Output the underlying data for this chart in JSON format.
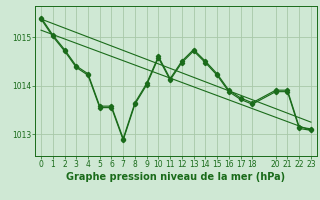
{
  "bg_color": "#cfe8d4",
  "grid_color": "#a8c8a8",
  "line_color": "#1a6b1a",
  "xlabel": "Graphe pression niveau de la mer (hPa)",
  "xlabel_fontsize": 7,
  "tick_fontsize": 5.5,
  "ylim": [
    1012.55,
    1015.65
  ],
  "xlim": [
    -0.5,
    23.5
  ],
  "yticks": [
    1013,
    1014,
    1015
  ],
  "xticks": [
    0,
    1,
    2,
    3,
    4,
    5,
    6,
    7,
    8,
    9,
    10,
    11,
    12,
    13,
    14,
    15,
    16,
    17,
    18,
    20,
    21,
    22,
    23
  ],
  "series1_x": [
    0,
    1,
    2,
    3,
    4,
    5,
    6,
    7,
    8,
    9,
    10,
    11,
    12,
    13,
    14,
    15,
    16,
    17,
    18,
    20,
    21,
    22,
    23
  ],
  "series1_y": [
    1015.38,
    1015.02,
    1014.72,
    1014.38,
    1014.22,
    1013.55,
    1013.55,
    1012.88,
    1013.62,
    1014.02,
    1014.58,
    1014.12,
    1014.48,
    1014.72,
    1014.48,
    1014.22,
    1013.88,
    1013.72,
    1013.62,
    1013.88,
    1013.88,
    1013.12,
    1013.08
  ],
  "series2_x": [
    0,
    1,
    2,
    3,
    4,
    5,
    6,
    7,
    8,
    9,
    10,
    11,
    12,
    13,
    14,
    15,
    16,
    17,
    18,
    20,
    21,
    22,
    23
  ],
  "series2_y": [
    1015.38,
    1015.02,
    1014.72,
    1014.38,
    1014.22,
    1013.55,
    1013.55,
    1012.88,
    1013.62,
    1014.02,
    1014.58,
    1014.12,
    1014.48,
    1014.72,
    1014.48,
    1014.22,
    1013.88,
    1013.72,
    1013.62,
    1013.88,
    1013.88,
    1013.12,
    1013.08
  ],
  "trend1_x": [
    0,
    23
  ],
  "trend1_y": [
    1015.38,
    1013.25
  ],
  "trend2_x": [
    0,
    23
  ],
  "trend2_y": [
    1015.15,
    1013.08
  ]
}
